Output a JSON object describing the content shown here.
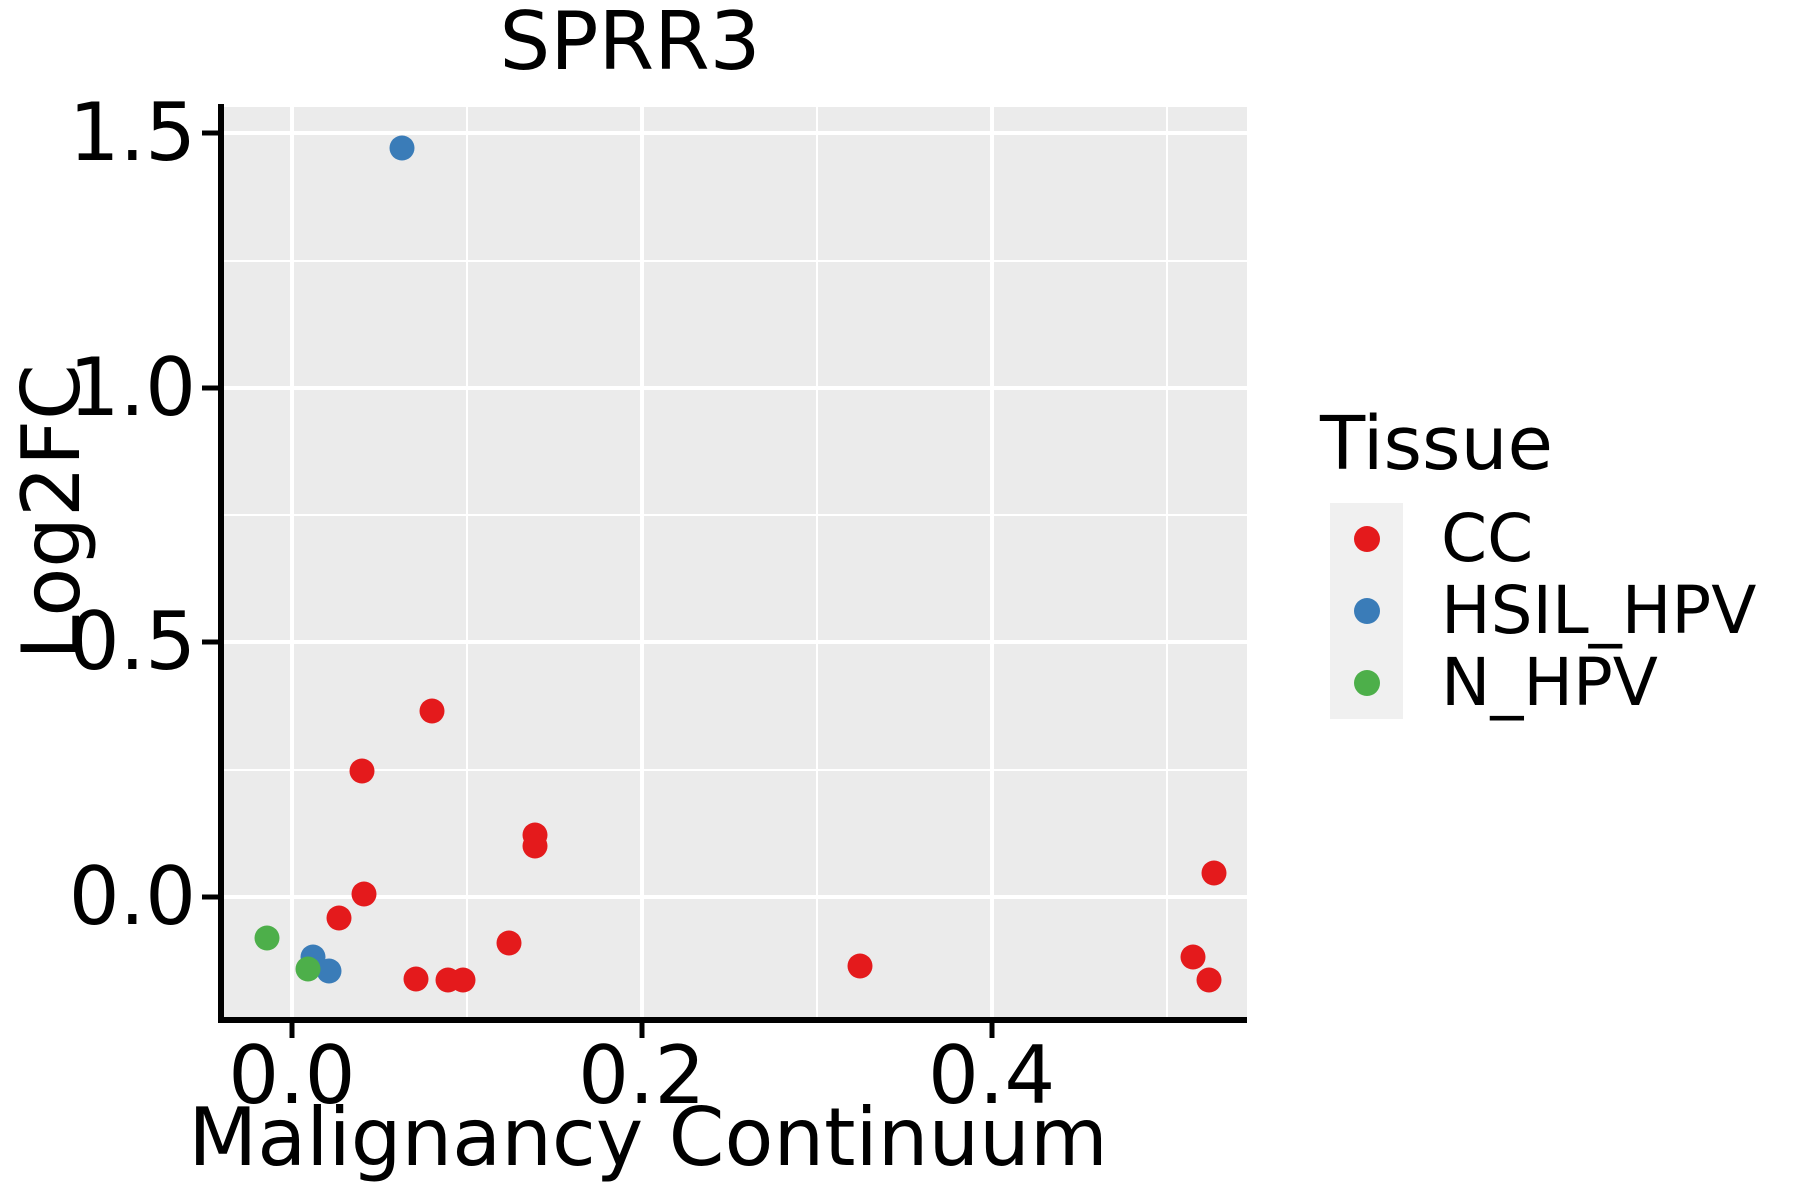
{
  "figure": {
    "title": "SPRR3"
  },
  "x_axis": {
    "label": "Malignancy Continuum"
  },
  "y_axis": {
    "label": "Log2FC"
  },
  "legend": {
    "title": "Tissue",
    "entries": [
      {
        "label": "CC",
        "color": "#E41A1C"
      },
      {
        "label": "HSIL_HPV",
        "color": "#3A7CB8"
      },
      {
        "label": "N_HPV",
        "color": "#4DAF4A"
      }
    ]
  },
  "chart_data": {
    "type": "scatter",
    "title": "SPRR3",
    "xlabel": "Malignancy Continuum",
    "ylabel": "Log2FC",
    "xlim": [
      -0.0394,
      0.546
    ],
    "ylim": [
      -0.2417,
      1.552
    ],
    "grid": true,
    "panel_background": "#EBEBEB",
    "gridline_color": "#FFFFFF",
    "legend_title": "Tissue",
    "legend_position": "right",
    "x_ticks": [
      {
        "value": 0.0,
        "label": "0.0"
      },
      {
        "value": 0.2,
        "label": "0.2"
      },
      {
        "value": 0.4,
        "label": "0.4"
      }
    ],
    "y_ticks": [
      {
        "value": 0.0,
        "label": "0.0"
      },
      {
        "value": 0.5,
        "label": "0.5"
      },
      {
        "value": 1.0,
        "label": "1.0"
      },
      {
        "value": 1.5,
        "label": "1.5"
      }
    ],
    "x_minor_gridlines": [
      0.1,
      0.3,
      0.5
    ],
    "y_minor_gridlines": [
      0.25,
      0.75,
      1.25
    ],
    "series": [
      {
        "name": "CC",
        "color": "#E41A1C",
        "points": [
          [
            0.04,
            0.248
          ],
          [
            0.08,
            0.366
          ],
          [
            0.139,
            0.122
          ],
          [
            0.139,
            0.1
          ],
          [
            0.041,
            0.006
          ],
          [
            0.027,
            -0.041
          ],
          [
            0.071,
            -0.161
          ],
          [
            0.089,
            -0.163
          ],
          [
            0.098,
            -0.163
          ],
          [
            0.124,
            -0.091
          ],
          [
            0.325,
            -0.135
          ],
          [
            0.527,
            0.047
          ],
          [
            0.515,
            -0.118
          ],
          [
            0.524,
            -0.163
          ]
        ]
      },
      {
        "name": "HSIL_HPV",
        "color": "#3A7CB8",
        "points": [
          [
            0.063,
            1.472
          ],
          [
            0.012,
            -0.118
          ],
          [
            0.021,
            -0.146
          ]
        ]
      },
      {
        "name": "N_HPV",
        "color": "#4DAF4A",
        "points": [
          [
            -0.014,
            -0.081
          ],
          [
            0.009,
            -0.142
          ]
        ]
      }
    ]
  }
}
